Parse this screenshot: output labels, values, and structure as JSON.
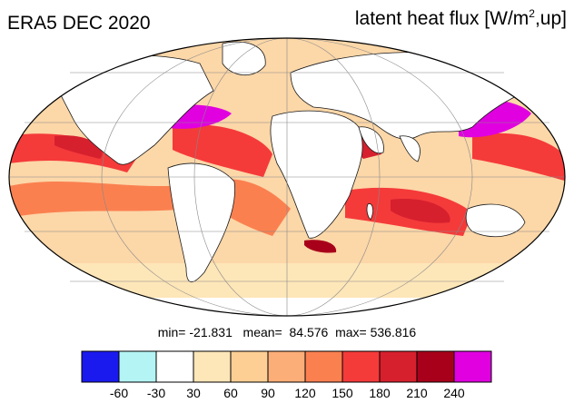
{
  "header": {
    "title": "ERA5 DEC 2020",
    "variable_prefix": "latent heat flux [W/m",
    "variable_exp": "2",
    "variable_suffix": ",up]"
  },
  "stats": {
    "text": "min= -21.831   mean=  84.576  max= 536.816"
  },
  "colorbar": {
    "colors": [
      "#1a1aee",
      "#b4f4f4",
      "#ffffff",
      "#fde6b8",
      "#fdcf94",
      "#fcae78",
      "#fb8050",
      "#f53a3a",
      "#d6202e",
      "#a8001a",
      "#e000e0"
    ],
    "labels": [
      "-60",
      "-30",
      "30",
      "60",
      "90",
      "120",
      "150",
      "180",
      "210",
      "240"
    ]
  },
  "map": {
    "projection": "mollweide",
    "ocean_color": "#fcd7a8",
    "land_color": "#ffffff"
  }
}
